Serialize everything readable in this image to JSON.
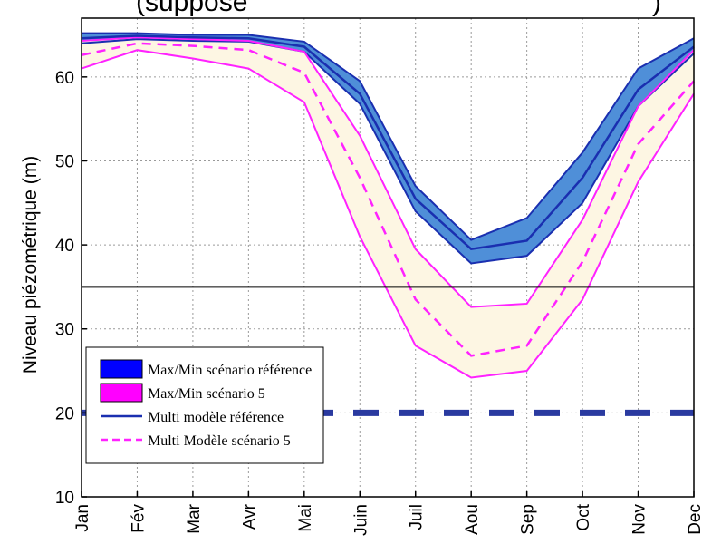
{
  "chart_data": {
    "type": "area",
    "title": "(supposé",
    "title_suffix": ")",
    "ylabel": "Niveau piézométrique (m)",
    "xlabel": "",
    "categories": [
      "Jan",
      "Fév",
      "Mar",
      "Avr",
      "Mai",
      "Juin",
      "Juil",
      "Aou",
      "Sep",
      "Oct",
      "Nov",
      "Dec"
    ],
    "ylim": [
      10,
      67
    ],
    "yticks": [
      "10",
      "20",
      "30",
      "40",
      "50",
      "60"
    ],
    "grid": true,
    "legend_position": "bottom-left",
    "series": [
      {
        "name": "Max/Min scénario référence",
        "kind": "band",
        "color": "#4f8fd8",
        "edge_color": "#1a2fb0",
        "legend_color": "#0000ff",
        "upper": [
          65.2,
          65.2,
          65.0,
          65.0,
          64.2,
          59.5,
          47.0,
          40.6,
          43.2,
          51.0,
          61.0,
          64.6
        ],
        "lower": [
          64.0,
          64.5,
          64.3,
          64.2,
          63.0,
          56.8,
          44.0,
          37.8,
          38.7,
          45.0,
          56.5,
          62.8
        ]
      },
      {
        "name": "Max/Min scénario 5",
        "kind": "band",
        "color": "#fdf6e3",
        "edge_color": "#ff22ff",
        "legend_color": "#ff00ff",
        "upper": [
          64.3,
          64.7,
          64.5,
          64.3,
          63.0,
          53.0,
          39.5,
          32.6,
          33.0,
          43.0,
          56.5,
          63.2
        ],
        "lower": [
          61.0,
          63.2,
          62.2,
          61.0,
          57.0,
          41.0,
          28.0,
          24.2,
          25.0,
          33.5,
          47.5,
          58.0
        ]
      },
      {
        "name": "Multi modèle référence",
        "kind": "line",
        "color": "#1a2fb0",
        "style": "solid",
        "values": [
          64.6,
          64.9,
          64.7,
          64.6,
          63.6,
          58.0,
          45.5,
          39.5,
          40.5,
          48.0,
          58.5,
          63.6
        ]
      },
      {
        "name": "Multi Modèle scénario 5",
        "kind": "line",
        "color": "#ff22ff",
        "style": "dashed",
        "values": [
          62.6,
          64.0,
          63.7,
          63.2,
          60.5,
          48.0,
          33.5,
          26.8,
          28.0,
          38.0,
          52.0,
          59.5
        ]
      }
    ],
    "reference_lines": [
      {
        "value": 35,
        "color": "#000000",
        "style": "solid"
      },
      {
        "value": 20,
        "color": "#2a3aa0",
        "style": "dashed"
      }
    ]
  }
}
